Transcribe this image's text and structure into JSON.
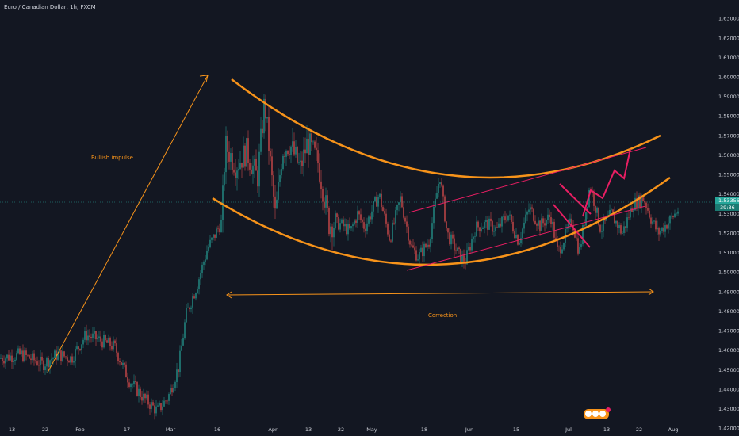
{
  "header": {
    "title": "Euro / Canadian Dollar, 1h, FXCM"
  },
  "colors": {
    "background": "#131722",
    "up": "#26a69a",
    "down": "#ef5350",
    "orange": "#f7931a",
    "magenta": "#e91e63",
    "text": "#d1d4dc",
    "price_tag": "#26a69a"
  },
  "chart_data": {
    "type": "candlestick",
    "title": "Euro / Canadian Dollar, 1h, FXCM",
    "ylim": [
      1.4162,
      1.6396
    ],
    "y_ticks": [
      "1.63000",
      "1.62000",
      "1.61000",
      "1.60000",
      "1.59000",
      "1.58000",
      "1.57000",
      "1.56000",
      "1.55000",
      "1.54000",
      "1.53000",
      "1.52000",
      "1.51000",
      "1.50000",
      "1.49000",
      "1.48000",
      "1.47000",
      "1.46000",
      "1.45000",
      "1.44000",
      "1.43000",
      "1.42000"
    ],
    "x_ticks": [
      "13",
      "22",
      "Feb",
      "17",
      "Mar",
      "16",
      "Apr",
      "13",
      "22",
      "May",
      "18",
      "Jun",
      "15",
      "Jul",
      "13",
      "22",
      "Aug"
    ],
    "last_price": "1.53356",
    "countdown": "39:36",
    "price_path": [
      [
        0,
        1.456
      ],
      [
        0.03,
        1.458
      ],
      [
        0.06,
        1.453
      ],
      [
        0.08,
        1.458
      ],
      [
        0.1,
        1.456
      ],
      [
        0.12,
        1.468
      ],
      [
        0.135,
        1.466
      ],
      [
        0.16,
        1.462
      ],
      [
        0.18,
        1.445
      ],
      [
        0.2,
        1.436
      ],
      [
        0.22,
        1.429
      ],
      [
        0.235,
        1.436
      ],
      [
        0.25,
        1.452
      ],
      [
        0.26,
        1.478
      ],
      [
        0.275,
        1.493
      ],
      [
        0.29,
        1.512
      ],
      [
        0.31,
        1.526
      ],
      [
        0.315,
        1.565
      ],
      [
        0.33,
        1.555
      ],
      [
        0.345,
        1.562
      ],
      [
        0.36,
        1.548
      ],
      [
        0.37,
        1.588
      ],
      [
        0.385,
        1.528
      ],
      [
        0.395,
        1.563
      ],
      [
        0.405,
        1.566
      ],
      [
        0.42,
        1.553
      ],
      [
        0.43,
        1.567
      ],
      [
        0.445,
        1.556
      ],
      [
        0.46,
        1.525
      ],
      [
        0.475,
        1.525
      ],
      [
        0.49,
        1.521
      ],
      [
        0.5,
        1.53
      ],
      [
        0.51,
        1.523
      ],
      [
        0.53,
        1.54
      ],
      [
        0.545,
        1.517
      ],
      [
        0.56,
        1.538
      ],
      [
        0.575,
        1.513
      ],
      [
        0.585,
        1.508
      ],
      [
        0.6,
        1.516
      ],
      [
        0.615,
        1.55
      ],
      [
        0.625,
        1.52
      ],
      [
        0.64,
        1.51
      ],
      [
        0.65,
        1.505
      ],
      [
        0.665,
        1.523
      ],
      [
        0.68,
        1.525
      ],
      [
        0.695,
        1.522
      ],
      [
        0.71,
        1.53
      ],
      [
        0.725,
        1.516
      ],
      [
        0.74,
        1.533
      ],
      [
        0.755,
        1.524
      ],
      [
        0.77,
        1.529
      ],
      [
        0.78,
        1.51
      ],
      [
        0.8,
        1.527
      ],
      [
        0.81,
        1.51
      ],
      [
        0.825,
        1.545
      ],
      [
        0.84,
        1.522
      ],
      [
        0.855,
        1.53
      ],
      [
        0.87,
        1.52
      ],
      [
        0.885,
        1.535
      ],
      [
        0.9,
        1.538
      ],
      [
        0.91,
        1.528
      ],
      [
        0.92,
        1.52
      ],
      [
        0.935,
        1.526
      ],
      [
        0.95,
        1.533
      ]
    ],
    "annotations": [
      {
        "name": "bullish-impulse",
        "text": "Bullish impulse"
      },
      {
        "name": "correction",
        "text": "Correction"
      }
    ]
  }
}
